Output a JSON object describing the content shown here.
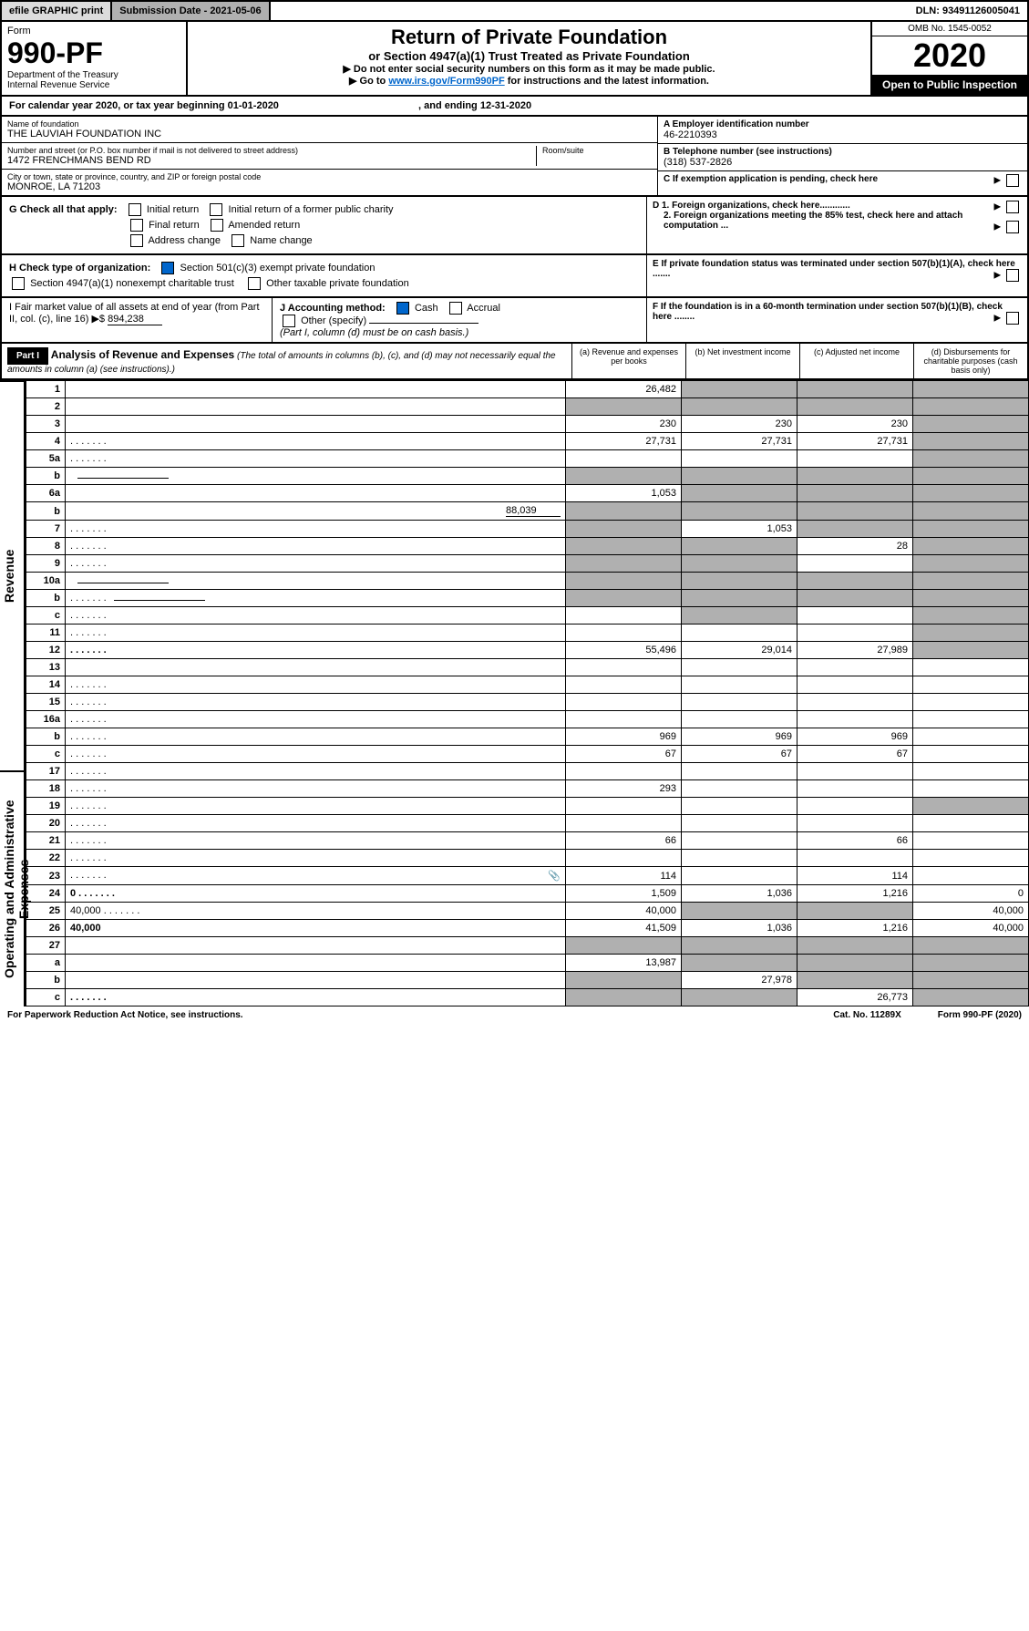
{
  "top": {
    "efile": "efile GRAPHIC print",
    "sub_label": "Submission Date - 2021-05-06",
    "dln": "DLN: 93491126005041"
  },
  "header": {
    "form_label": "Form",
    "form_num": "990-PF",
    "dept": "Department of the Treasury",
    "irs": "Internal Revenue Service",
    "title": "Return of Private Foundation",
    "subtitle": "or Section 4947(a)(1) Trust Treated as Private Foundation",
    "instr1": "▶ Do not enter social security numbers on this form as it may be made public.",
    "instr2_pre": "▶ Go to ",
    "instr2_link": "www.irs.gov/Form990PF",
    "instr2_post": " for instructions and the latest information.",
    "omb": "OMB No. 1545-0052",
    "year": "2020",
    "open": "Open to Public Inspection"
  },
  "cal": {
    "text_pre": "For calendar year 2020, or tax year beginning ",
    "begin": "01-01-2020",
    "mid": " , and ending ",
    "end": "12-31-2020"
  },
  "entity": {
    "name_label": "Name of foundation",
    "name": "THE LAUVIAH FOUNDATION INC",
    "addr_label": "Number and street (or P.O. box number if mail is not delivered to street address)",
    "addr": "1472 FRENCHMANS BEND RD",
    "room_label": "Room/suite",
    "city_label": "City or town, state or province, country, and ZIP or foreign postal code",
    "city": "MONROE, LA  71203",
    "ein_label": "A Employer identification number",
    "ein": "46-2210393",
    "phone_label": "B Telephone number (see instructions)",
    "phone": "(318) 537-2826",
    "c_label": "C If exemption application is pending, check here"
  },
  "checks": {
    "g_label": "G Check all that apply:",
    "initial": "Initial return",
    "initial_former": "Initial return of a former public charity",
    "final": "Final return",
    "amended": "Amended return",
    "addr_change": "Address change",
    "name_change": "Name change",
    "h_label": "H Check type of organization:",
    "h_501c3": "Section 501(c)(3) exempt private foundation",
    "h_4947": "Section 4947(a)(1) nonexempt charitable trust",
    "h_other": "Other taxable private foundation",
    "d1": "D 1. Foreign organizations, check here............",
    "d2": "2. Foreign organizations meeting the 85% test, check here and attach computation ...",
    "e_label": "E  If private foundation status was terminated under section 507(b)(1)(A), check here .......",
    "i_label": "I Fair market value of all assets at end of year (from Part II, col. (c), line 16) ▶$ ",
    "i_val": "894,238",
    "j_label": "J Accounting method:",
    "j_cash": "Cash",
    "j_accrual": "Accrual",
    "j_other": "Other (specify)",
    "j_note": "(Part I, column (d) must be on cash basis.)",
    "f_label": "F  If the foundation is in a 60-month termination under section 507(b)(1)(B), check here ........"
  },
  "part1": {
    "label": "Part I",
    "title": "Analysis of Revenue and Expenses",
    "note": "(The total of amounts in columns (b), (c), and (d) may not necessarily equal the amounts in column (a) (see instructions).)",
    "col_a": "(a)  Revenue and expenses per books",
    "col_b": "(b)  Net investment income",
    "col_c": "(c)  Adjusted net income",
    "col_d": "(d)  Disbursements for charitable purposes (cash basis only)"
  },
  "sections": {
    "revenue": "Revenue",
    "expenses": "Operating and Administrative Expenses"
  },
  "rows": [
    {
      "n": "1",
      "d": "",
      "a": "26,482",
      "b": "",
      "c": "",
      "grey": [
        "b",
        "c",
        "d"
      ]
    },
    {
      "n": "2",
      "d": "",
      "dotshort": true,
      "a": "",
      "b": "",
      "c": "",
      "grey": [
        "a",
        "b",
        "c",
        "d"
      ]
    },
    {
      "n": "3",
      "d": "",
      "a": "230",
      "b": "230",
      "c": "230",
      "grey": [
        "d"
      ]
    },
    {
      "n": "4",
      "d": "",
      "dots": true,
      "a": "27,731",
      "b": "27,731",
      "c": "27,731",
      "grey": [
        "d"
      ]
    },
    {
      "n": "5a",
      "d": "",
      "dots": true,
      "a": "",
      "b": "",
      "c": "",
      "grey": [
        "d"
      ]
    },
    {
      "n": "b",
      "d": "",
      "ul": true,
      "a": "",
      "b": "",
      "c": "",
      "grey": [
        "a",
        "b",
        "c",
        "d"
      ]
    },
    {
      "n": "6a",
      "d": "",
      "a": "1,053",
      "b": "",
      "c": "",
      "grey": [
        "b",
        "c",
        "d"
      ]
    },
    {
      "n": "b",
      "d": "",
      "ul_val": "88,039",
      "a": "",
      "b": "",
      "c": "",
      "grey": [
        "a",
        "b",
        "c",
        "d"
      ]
    },
    {
      "n": "7",
      "d": "",
      "dots": true,
      "a": "",
      "b": "1,053",
      "c": "",
      "grey": [
        "a",
        "c",
        "d"
      ]
    },
    {
      "n": "8",
      "d": "",
      "dots": true,
      "a": "",
      "b": "",
      "c": "28",
      "grey": [
        "a",
        "b",
        "d"
      ]
    },
    {
      "n": "9",
      "d": "",
      "dots": true,
      "a": "",
      "b": "",
      "c": "",
      "grey": [
        "a",
        "b",
        "d"
      ]
    },
    {
      "n": "10a",
      "d": "",
      "ul": true,
      "a": "",
      "b": "",
      "c": "",
      "grey": [
        "a",
        "b",
        "c",
        "d"
      ]
    },
    {
      "n": "b",
      "d": "",
      "dots": true,
      "ul": true,
      "a": "",
      "b": "",
      "c": "",
      "grey": [
        "a",
        "b",
        "c",
        "d"
      ]
    },
    {
      "n": "c",
      "d": "",
      "dots": true,
      "a": "",
      "b": "",
      "c": "",
      "grey": [
        "b",
        "d"
      ]
    },
    {
      "n": "11",
      "d": "",
      "dots": true,
      "a": "",
      "b": "",
      "c": "",
      "grey": [
        "d"
      ]
    },
    {
      "n": "12",
      "d": "",
      "dots": true,
      "bold": true,
      "a": "55,496",
      "b": "29,014",
      "c": "27,989",
      "grey": [
        "d"
      ]
    },
    {
      "n": "13",
      "d": "",
      "a": "",
      "b": "",
      "c": ""
    },
    {
      "n": "14",
      "d": "",
      "dots": true,
      "a": "",
      "b": "",
      "c": ""
    },
    {
      "n": "15",
      "d": "",
      "dots": true,
      "a": "",
      "b": "",
      "c": ""
    },
    {
      "n": "16a",
      "d": "",
      "dots": true,
      "a": "",
      "b": "",
      "c": ""
    },
    {
      "n": "b",
      "d": "",
      "dots": true,
      "a": "969",
      "b": "969",
      "c": "969"
    },
    {
      "n": "c",
      "d": "",
      "dots": true,
      "a": "67",
      "b": "67",
      "c": "67"
    },
    {
      "n": "17",
      "d": "",
      "dots": true,
      "a": "",
      "b": "",
      "c": ""
    },
    {
      "n": "18",
      "d": "",
      "dots": true,
      "a": "293",
      "b": "",
      "c": ""
    },
    {
      "n": "19",
      "d": "",
      "dots": true,
      "a": "",
      "b": "",
      "c": "",
      "grey": [
        "d"
      ]
    },
    {
      "n": "20",
      "d": "",
      "dots": true,
      "a": "",
      "b": "",
      "c": ""
    },
    {
      "n": "21",
      "d": "",
      "dots": true,
      "a": "66",
      "b": "",
      "c": "66"
    },
    {
      "n": "22",
      "d": "",
      "dots": true,
      "a": "",
      "b": "",
      "c": ""
    },
    {
      "n": "23",
      "d": "",
      "dots": true,
      "icon": true,
      "a": "114",
      "b": "",
      "c": "114"
    },
    {
      "n": "24",
      "d": "0",
      "dots": true,
      "bold": true,
      "a": "1,509",
      "b": "1,036",
      "c": "1,216"
    },
    {
      "n": "25",
      "d": "40,000",
      "dots": true,
      "a": "40,000",
      "b": "",
      "c": "",
      "grey": [
        "b",
        "c"
      ]
    },
    {
      "n": "26",
      "d": "40,000",
      "bold": true,
      "a": "41,509",
      "b": "1,036",
      "c": "1,216"
    },
    {
      "n": "27",
      "d": "",
      "a": "",
      "b": "",
      "c": "",
      "grey": [
        "a",
        "b",
        "c",
        "d"
      ]
    },
    {
      "n": "a",
      "d": "",
      "bold": true,
      "a": "13,987",
      "b": "",
      "c": "",
      "grey": [
        "b",
        "c",
        "d"
      ]
    },
    {
      "n": "b",
      "d": "",
      "bold": true,
      "a": "",
      "b": "27,978",
      "c": "",
      "grey": [
        "a",
        "c",
        "d"
      ]
    },
    {
      "n": "c",
      "d": "",
      "dots": true,
      "bold": true,
      "a": "",
      "b": "",
      "c": "26,773",
      "grey": [
        "a",
        "b",
        "d"
      ]
    }
  ],
  "footer": {
    "left": "For Paperwork Reduction Act Notice, see instructions.",
    "mid": "Cat. No. 11289X",
    "right": "Form 990-PF (2020)"
  }
}
